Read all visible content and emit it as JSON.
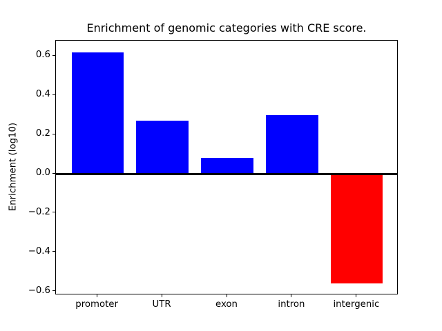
{
  "chart_data": {
    "type": "bar",
    "title": "Enrichment of genomic categories with CRE score.",
    "xlabel": "",
    "ylabel": "Enrichment (log10)",
    "categories": [
      "promoter",
      "UTR",
      "exon",
      "intron",
      "intergenic"
    ],
    "values": [
      0.62,
      0.27,
      0.08,
      0.3,
      -0.56
    ],
    "colors": [
      "#0000ff",
      "#0000ff",
      "#0000ff",
      "#0000ff",
      "#ff0000"
    ],
    "positive_color": "#0000ff",
    "negative_color": "#ff0000",
    "ytick_labels": [
      "0.6",
      "0.4",
      "0.2",
      "0.0",
      "−0.2",
      "−0.4",
      "−0.6"
    ],
    "ytick_values": [
      0.6,
      0.4,
      0.2,
      0.0,
      -0.2,
      -0.4,
      -0.6
    ],
    "ylim": [
      -0.619,
      0.679
    ],
    "xlim": [
      -0.64,
      4.64
    ],
    "bar_width": 0.8,
    "zero_line": true,
    "grid": false,
    "legend_position": "none",
    "background_color": "#ffffff",
    "spine_color": "#000000"
  }
}
